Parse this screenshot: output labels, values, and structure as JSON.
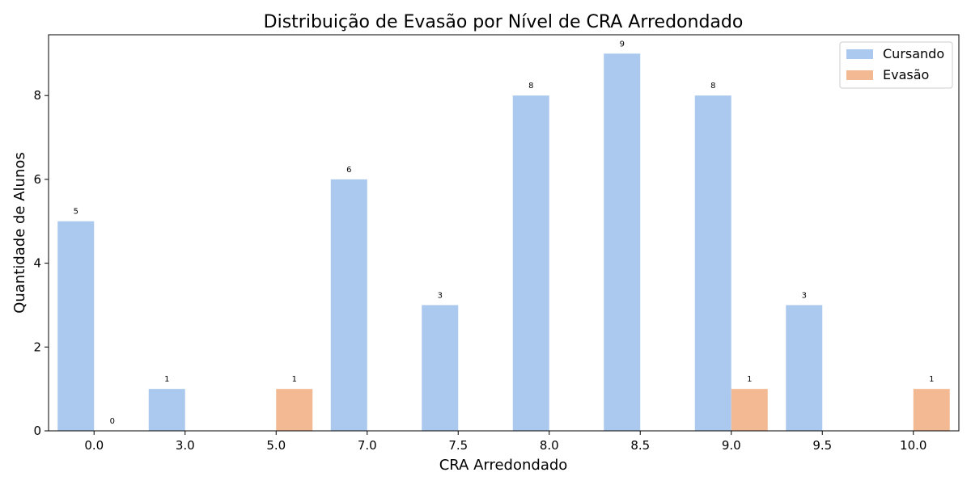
{
  "chart_data": {
    "type": "bar",
    "title": "Distribuição de Evasão por Nível de CRA Arredondado",
    "xlabel": "CRA Arredondado",
    "ylabel": "Quantidade de Alunos",
    "categories": [
      "0.0",
      "3.0",
      "5.0",
      "7.0",
      "7.5",
      "8.0",
      "8.5",
      "9.0",
      "9.5",
      "10.0"
    ],
    "series": [
      {
        "name": "Cursando",
        "color": "#abc9ef",
        "values": [
          5,
          1,
          0,
          6,
          3,
          8,
          9,
          8,
          3,
          0
        ]
      },
      {
        "name": "Evasão",
        "color": "#f2b992",
        "values": [
          0,
          0,
          1,
          0,
          0,
          0,
          0,
          1,
          0,
          1
        ]
      }
    ],
    "data_labels": [
      {
        "series": 0,
        "category": 0,
        "text": "5"
      },
      {
        "series": 1,
        "category": 0,
        "text": "0"
      },
      {
        "series": 0,
        "category": 1,
        "text": "1"
      },
      {
        "series": 1,
        "category": 2,
        "text": "1"
      },
      {
        "series": 0,
        "category": 3,
        "text": "6"
      },
      {
        "series": 0,
        "category": 4,
        "text": "3"
      },
      {
        "series": 0,
        "category": 5,
        "text": "8"
      },
      {
        "series": 0,
        "category": 6,
        "text": "9"
      },
      {
        "series": 0,
        "category": 7,
        "text": "8"
      },
      {
        "series": 1,
        "category": 7,
        "text": "1"
      },
      {
        "series": 0,
        "category": 8,
        "text": "3"
      },
      {
        "series": 1,
        "category": 9,
        "text": "1"
      }
    ],
    "yticks": [
      "0",
      "2",
      "4",
      "6",
      "8"
    ],
    "ylim": [
      0,
      9.45
    ],
    "grid": false,
    "legend": "top-right"
  }
}
